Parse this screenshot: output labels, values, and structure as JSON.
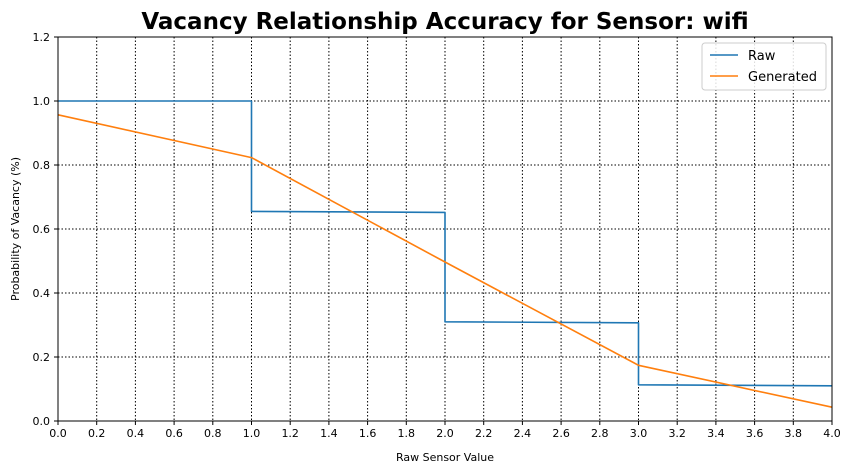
{
  "chart_data": {
    "type": "line",
    "title": "Vacancy Relationship Accuracy for Sensor: wifi",
    "xlabel": "Raw Sensor Value",
    "ylabel": "Probability of Vacancy (%)",
    "xlim": [
      0.0,
      4.0
    ],
    "ylim": [
      0.0,
      1.2
    ],
    "xticks": [
      "0.0",
      "0.2",
      "0.4",
      "0.6",
      "0.8",
      "1.0",
      "1.2",
      "1.4",
      "1.6",
      "1.8",
      "2.0",
      "2.2",
      "2.4",
      "2.6",
      "2.8",
      "3.0",
      "3.2",
      "3.4",
      "3.6",
      "3.8",
      "4.0"
    ],
    "yticks": [
      "0.0",
      "0.2",
      "0.4",
      "0.6",
      "0.8",
      "1.0",
      "1.2"
    ],
    "grid": true,
    "grid_style": "dotted",
    "legend_position": "top-right",
    "series": [
      {
        "name": "Raw",
        "color": "#1f77b4",
        "x": [
          0.0,
          1.0,
          1.0,
          2.0,
          2.0,
          3.0,
          3.0,
          4.0
        ],
        "y": [
          1.0,
          1.0,
          0.655,
          0.652,
          0.31,
          0.307,
          0.113,
          0.11
        ]
      },
      {
        "name": "Generated",
        "color": "#ff7f0e",
        "x": [
          0.0,
          1.0,
          2.0,
          3.0,
          4.0
        ],
        "y": [
          0.957,
          0.823,
          0.497,
          0.174,
          0.043
        ]
      }
    ]
  }
}
